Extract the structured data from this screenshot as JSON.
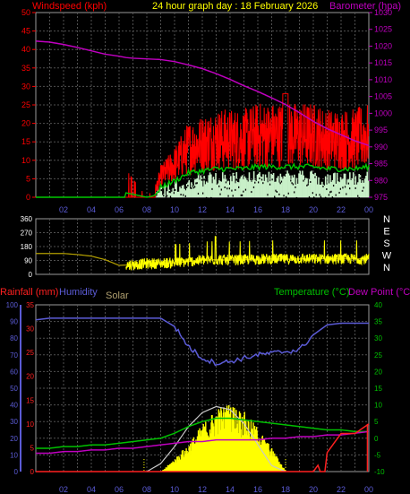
{
  "title": "24 hour graph day : 18 February 2026",
  "colors": {
    "background": "#000000",
    "grid": "#505050",
    "panel_border": "#9a9a9a",
    "wind": "#ff0000",
    "gust_line": "#00c800",
    "direction": "#ffff00",
    "direction_line": "#b4a000",
    "barometer": "#c000c0",
    "rain": "#ff2020",
    "humidity": "#5b5bd6",
    "solar": "#ffff00",
    "solar_theoretical": "#c8c8c8",
    "temperature": "#00c000",
    "dew_point": "#c000c0",
    "white": "#ffffff",
    "light_green": "#c8f0c8"
  },
  "panels": {
    "wind": {
      "left_label": "Windspeed (kph)",
      "right_label": "Barometer (hpa)",
      "y_ticks": [
        "0",
        "5",
        "10",
        "15",
        "20",
        "25",
        "30",
        "35",
        "40",
        "45",
        "50"
      ],
      "baro_ticks": [
        "975",
        "980",
        "985",
        "990",
        "995",
        "1000",
        "1005",
        "1010",
        "1015",
        "1020",
        "1025",
        "1030"
      ]
    },
    "direction": {
      "y_ticks": [
        "0",
        "90",
        "180",
        "270",
        "360"
      ],
      "compass": [
        "N",
        "W",
        "S",
        "E",
        "N"
      ]
    },
    "bottom": {
      "rain_label": "Rainfall (mm)",
      "humidity_label": "Humidity",
      "solar_label": "Solar",
      "temp_label": "Temperature (°C)",
      "dew_label": "Dew Point (°C)",
      "humidity_ticks": [
        "0",
        "10",
        "20",
        "30",
        "40",
        "50",
        "60",
        "70",
        "80",
        "90",
        "100"
      ],
      "rain_ticks": [
        "0",
        "5",
        "10",
        "15",
        "20",
        "25",
        "30",
        "35"
      ],
      "temp_ticks": [
        "-10",
        "-5",
        "0",
        "5",
        "10",
        "15",
        "20",
        "25",
        "30",
        "35",
        "40"
      ]
    }
  },
  "x_ticks": [
    "02",
    "04",
    "06",
    "08",
    "10",
    "12",
    "14",
    "16",
    "18",
    "20",
    "22",
    "00"
  ],
  "chart_data": [
    {
      "type": "line",
      "title": "24 hour graph day : 18 February 2026",
      "xlabel": "",
      "ylabel": "Windspeed (kph)",
      "y2label": "Barometer (hpa)",
      "x_hours": [
        0,
        1,
        2,
        3,
        4,
        5,
        6,
        6.5,
        7,
        8,
        8.5,
        9,
        10,
        11,
        12,
        13,
        14,
        15,
        16,
        17,
        18,
        19,
        20,
        21,
        22,
        23,
        24
      ],
      "ylim": [
        0,
        50
      ],
      "y2lim": [
        975,
        1030
      ],
      "series": [
        {
          "name": "Windspeed (kph)",
          "values": [
            0,
            0,
            0,
            0,
            0,
            0,
            0,
            3,
            2,
            0,
            1,
            5,
            8,
            12,
            13,
            14,
            14,
            14,
            15,
            15,
            15,
            15,
            15,
            14,
            14,
            14,
            15
          ]
        },
        {
          "name": "Barometer (hpa)",
          "values": [
            1021.5,
            1021.2,
            1020.5,
            1019.6,
            1018.6,
            1017.6,
            1017.0,
            1016.6,
            1016.4,
            1016.2,
            1016.1,
            1016.0,
            1015.4,
            1014.4,
            1013.3,
            1011.8,
            1010.1,
            1008.2,
            1006.5,
            1004.6,
            1002.6,
            1000.2,
            997.6,
            995.4,
            993.6,
            991.8,
            990.4
          ]
        }
      ],
      "gust_peak_kph": 32
    },
    {
      "type": "line",
      "ylabel": "Wind direction",
      "ylim": [
        0,
        360
      ],
      "x_hours": [
        0,
        1,
        2,
        3,
        4,
        5,
        6,
        7,
        8,
        9,
        10,
        11,
        12,
        13,
        14,
        15,
        16,
        17,
        18,
        19,
        20,
        21,
        22,
        23,
        24
      ],
      "series": [
        {
          "name": "Direction (deg)",
          "values": [
            135,
            135,
            135,
            128,
            118,
            95,
            58,
            62,
            70,
            72,
            75,
            82,
            92,
            95,
            92,
            95,
            98,
            100,
            98,
            100,
            100,
            100,
            100,
            100,
            100
          ]
        }
      ]
    },
    {
      "type": "line",
      "x_hours": [
        0,
        1,
        2,
        3,
        4,
        5,
        6,
        7,
        8,
        9,
        10,
        11,
        12,
        13,
        14,
        15,
        16,
        17,
        18,
        19,
        20,
        21,
        22,
        23,
        24
      ],
      "ylim_humidity": [
        0,
        100
      ],
      "ylim_rain": [
        0,
        35
      ],
      "ylim_temp": [
        -10,
        40
      ],
      "series": [
        {
          "name": "Humidity",
          "values": [
            91,
            92,
            92,
            92,
            92,
            92,
            92,
            92,
            92,
            92,
            87,
            75,
            68,
            65,
            66,
            68,
            70,
            71,
            72,
            73,
            82,
            88,
            89,
            89,
            89
          ]
        },
        {
          "name": "Temperature (°C)",
          "values": [
            -3,
            -3,
            -2.5,
            -2.5,
            -2,
            -2,
            -1.5,
            -1,
            -0.5,
            0,
            1.5,
            3.5,
            5,
            6,
            6,
            5.5,
            5,
            4.5,
            4,
            3.5,
            3,
            2.5,
            2.5,
            2,
            2
          ]
        },
        {
          "name": "Dew Point (°C)",
          "values": [
            -4.5,
            -4.5,
            -4,
            -4,
            -3.5,
            -3.5,
            -3,
            -3,
            -2.5,
            -2,
            -1.5,
            -1,
            -1,
            -0.5,
            -0.5,
            -0.5,
            -0.5,
            0,
            0,
            0.5,
            0.5,
            1,
            1,
            1.5,
            2
          ]
        },
        {
          "name": "Rainfall (mm)",
          "values": [
            0,
            0,
            0,
            0,
            0,
            0,
            0,
            0,
            0,
            0,
            0,
            0,
            0,
            0,
            0,
            0,
            0,
            0,
            0,
            0,
            0,
            4,
            8,
            8,
            10
          ]
        },
        {
          "name": "Solar",
          "values": [
            0,
            0,
            0,
            0,
            0,
            0,
            0,
            0,
            0,
            0,
            120,
            250,
            420,
            560,
            600,
            520,
            380,
            200,
            0,
            0,
            0,
            0,
            0,
            0,
            0
          ]
        },
        {
          "name": "Solar theoretical",
          "values": [
            0,
            0,
            0,
            0,
            0,
            0,
            0,
            0,
            0,
            80,
            250,
            450,
            590,
            650,
            620,
            480,
            270,
            60,
            0,
            0,
            0,
            0,
            0,
            0,
            0
          ]
        }
      ]
    }
  ]
}
